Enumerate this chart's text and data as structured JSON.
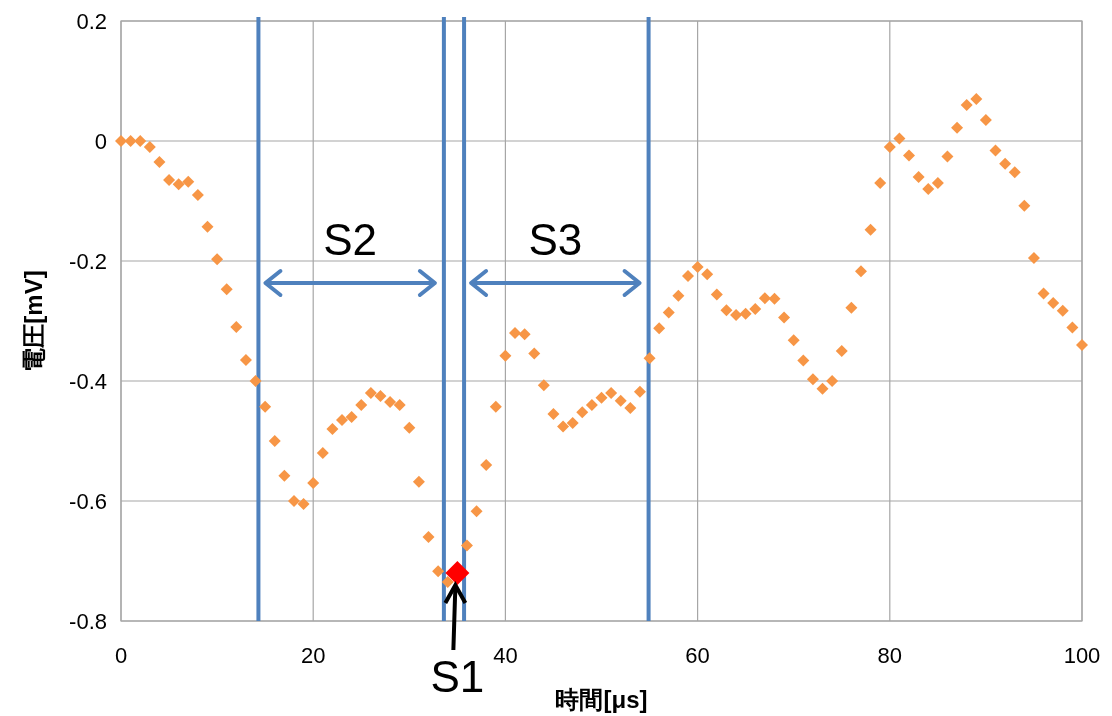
{
  "chart_data": {
    "type": "scatter",
    "xlabel": "時間[μs]",
    "ylabel": "電圧[mV]",
    "xlim": [
      0,
      100
    ],
    "xticks": [
      0,
      20,
      40,
      60,
      80,
      100
    ],
    "ylim": [
      -0.8,
      0.2
    ],
    "yticks": [
      {
        "value": -0.8,
        "label": "-0.8"
      },
      {
        "value": -0.6,
        "label": "-0.6"
      },
      {
        "value": -0.4,
        "label": "-0.4"
      },
      {
        "value": -0.2,
        "label": "-0.2"
      },
      0,
      {
        "value": 0.2,
        "label": "0.2"
      }
    ],
    "grid": true,
    "marker": "diamond",
    "series": [
      {
        "color": "#f79646",
        "x": [
          0,
          1,
          2,
          3,
          4,
          5,
          6,
          7,
          8,
          9,
          10,
          11,
          12,
          13,
          14,
          15,
          16,
          17,
          18,
          19,
          20,
          21,
          22,
          23,
          24,
          25,
          26,
          27,
          28,
          29,
          30,
          31,
          32,
          33,
          34,
          36,
          37,
          38,
          39,
          40,
          41,
          42,
          43,
          44,
          45,
          46,
          47,
          48,
          49,
          50,
          51,
          52,
          53,
          54,
          55,
          56,
          57,
          58,
          59,
          60,
          61,
          62,
          63,
          64,
          65,
          66,
          67,
          68,
          69,
          70,
          71,
          72,
          73,
          74,
          75,
          76,
          77,
          78,
          79,
          80,
          81,
          82,
          83,
          84,
          85,
          86,
          87,
          88,
          89,
          90,
          91,
          92,
          93,
          94,
          95,
          96,
          97,
          98,
          99,
          100
        ],
        "values": [
          0,
          0,
          0,
          -0.01,
          -0.035,
          -0.065,
          -0.072,
          -0.068,
          -0.09,
          -0.143,
          -0.197,
          -0.247,
          -0.31,
          -0.365,
          -0.4,
          -0.443,
          -0.5,
          -0.558,
          -0.6,
          -0.605,
          -0.57,
          -0.52,
          -0.48,
          -0.465,
          -0.46,
          -0.44,
          -0.42,
          -0.425,
          -0.435,
          -0.44,
          -0.478,
          -0.568,
          -0.66,
          -0.717,
          -0.735,
          -0.674,
          -0.617,
          -0.54,
          -0.443,
          -0.358,
          -0.32,
          -0.322,
          -0.354,
          -0.407,
          -0.455,
          -0.476,
          -0.47,
          -0.452,
          -0.44,
          -0.428,
          -0.42,
          -0.433,
          -0.445,
          -0.418,
          -0.362,
          -0.312,
          -0.286,
          -0.258,
          -0.225,
          -0.21,
          -0.222,
          -0.256,
          -0.282,
          -0.29,
          -0.288,
          -0.28,
          -0.262,
          -0.263,
          -0.294,
          -0.332,
          -0.366,
          -0.397,
          -0.413,
          -0.4,
          -0.35,
          -0.278,
          -0.217,
          -0.148,
          -0.07,
          -0.01,
          0.004,
          -0.024,
          -0.06,
          -0.08,
          -0.07,
          -0.026,
          0.022,
          0.06,
          0.07,
          0.035,
          -0.016,
          -0.038,
          -0.052,
          -0.108,
          -0.195,
          -0.254,
          -0.27,
          -0.283,
          -0.311,
          -0.34
        ]
      },
      {
        "color": "#ff0000",
        "x": [
          35
        ],
        "values": [
          -0.72
        ]
      }
    ],
    "ref_lines": [
      {
        "axis": "x",
        "value": 14.3,
        "color": "#4f81bd"
      },
      {
        "axis": "x",
        "value": 33.6,
        "color": "#4f81bd"
      },
      {
        "axis": "x",
        "value": 35.7,
        "color": "#4f81bd"
      },
      {
        "axis": "x",
        "value": 54.9,
        "color": "#4f81bd"
      }
    ],
    "annotations": [
      {
        "text": "S1",
        "x": 35,
        "y": -0.72
      },
      "S2",
      "S3"
    ]
  }
}
